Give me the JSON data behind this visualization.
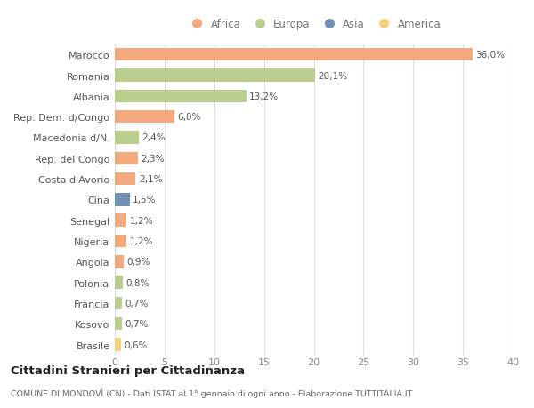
{
  "countries": [
    "Marocco",
    "Romania",
    "Albania",
    "Rep. Dem. d/Congo",
    "Macedonia d/N.",
    "Rep. del Congo",
    "Costa d'Avorio",
    "Cina",
    "Senegal",
    "Nigeria",
    "Angola",
    "Polonia",
    "Francia",
    "Kosovo",
    "Brasile"
  ],
  "values": [
    36.0,
    20.1,
    13.2,
    6.0,
    2.4,
    2.3,
    2.1,
    1.5,
    1.2,
    1.2,
    0.9,
    0.8,
    0.7,
    0.7,
    0.6
  ],
  "labels": [
    "36,0%",
    "20,1%",
    "13,2%",
    "6,0%",
    "2,4%",
    "2,3%",
    "2,1%",
    "1,5%",
    "1,2%",
    "1,2%",
    "0,9%",
    "0,8%",
    "0,7%",
    "0,7%",
    "0,6%"
  ],
  "continents": [
    "Africa",
    "Europa",
    "Europa",
    "Africa",
    "Europa",
    "Africa",
    "Africa",
    "Asia",
    "Africa",
    "Africa",
    "Africa",
    "Europa",
    "Europa",
    "Europa",
    "America"
  ],
  "colors": {
    "Africa": "#F2AA7E",
    "Europa": "#BACF8D",
    "Asia": "#7090B8",
    "America": "#F5D07A"
  },
  "xlim": [
    0,
    40
  ],
  "xticks": [
    0,
    5,
    10,
    15,
    20,
    25,
    30,
    35,
    40
  ],
  "title": "Cittadini Stranieri per Cittadinanza",
  "subtitle": "COMUNE DI MONDOVÌ (CN) - Dati ISTAT al 1° gennaio di ogni anno - Elaborazione TUTTITALIA.IT",
  "background_color": "#ffffff",
  "grid_color": "#dddddd",
  "legend_order": [
    "Africa",
    "Europa",
    "Asia",
    "America"
  ]
}
